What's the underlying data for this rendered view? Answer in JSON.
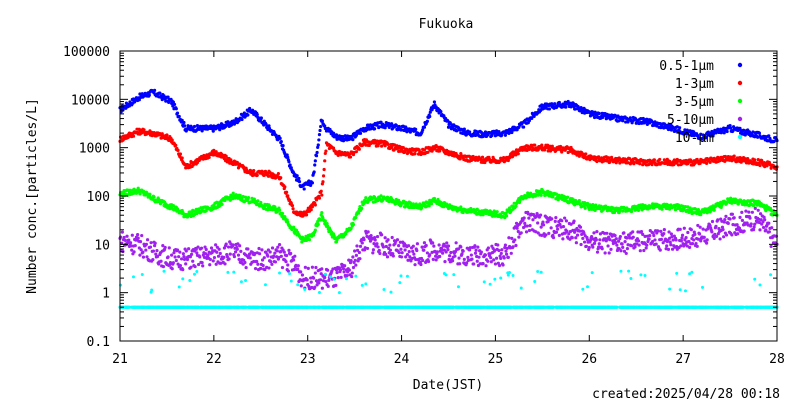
{
  "chart_data": {
    "type": "scatter",
    "title": "Fukuoka",
    "xlabel": "Date(JST)",
    "ylabel": "Number conc.[particles/L]",
    "y_scale": "log",
    "xlim": [
      21,
      28
    ],
    "ylim": [
      0.1,
      100000
    ],
    "x_ticks": [
      "21",
      "22",
      "23",
      "24",
      "25",
      "26",
      "27",
      "28"
    ],
    "y_ticks": [
      "0.1",
      "1",
      "10",
      "100",
      "1000",
      "10000",
      "100000"
    ],
    "legend_position": "top-right",
    "footer": "created:2025/04/28 00:18",
    "series": [
      {
        "name": "0.5-1μm",
        "color": "#0000ff",
        "x": [
          21.0,
          21.2,
          21.35,
          21.55,
          21.7,
          22.0,
          22.2,
          22.4,
          22.55,
          22.7,
          22.85,
          22.95,
          23.05,
          23.15,
          23.2,
          23.3,
          23.45,
          23.6,
          23.8,
          24.0,
          24.2,
          24.35,
          24.5,
          24.7,
          24.9,
          25.1,
          25.3,
          25.5,
          25.8,
          26.0,
          26.3,
          26.6,
          26.9,
          27.2,
          27.5,
          27.8,
          28.0
        ],
        "y": [
          6000,
          11000,
          14000,
          9000,
          2500,
          2500,
          3200,
          6000,
          3000,
          1500,
          300,
          150,
          200,
          4000,
          2500,
          1700,
          1500,
          2500,
          3000,
          2500,
          2000,
          8000,
          3000,
          2000,
          1900,
          2000,
          3000,
          7000,
          8000,
          5000,
          4000,
          3500,
          2500,
          1700,
          2500,
          1800,
          1400
        ]
      },
      {
        "name": "1-3μm",
        "color": "#ff0000",
        "x": [
          21.0,
          21.2,
          21.35,
          21.55,
          21.7,
          22.0,
          22.2,
          22.4,
          22.55,
          22.7,
          22.85,
          22.95,
          23.05,
          23.15,
          23.2,
          23.3,
          23.45,
          23.6,
          23.8,
          24.0,
          24.2,
          24.35,
          24.5,
          24.7,
          24.9,
          25.1,
          25.3,
          25.5,
          25.8,
          26.0,
          26.3,
          26.6,
          26.9,
          27.2,
          27.5,
          27.8,
          28.0
        ],
        "y": [
          1500,
          2200,
          2000,
          1500,
          400,
          800,
          500,
          300,
          300,
          250,
          50,
          40,
          60,
          120,
          1200,
          800,
          700,
          1300,
          1200,
          900,
          800,
          1000,
          800,
          600,
          550,
          550,
          1000,
          1000,
          900,
          600,
          550,
          500,
          500,
          500,
          600,
          500,
          400
        ]
      },
      {
        "name": "3-5μm",
        "color": "#00ff00",
        "x": [
          21.0,
          21.2,
          21.35,
          21.55,
          21.7,
          22.0,
          22.2,
          22.4,
          22.55,
          22.7,
          22.85,
          22.95,
          23.05,
          23.15,
          23.2,
          23.3,
          23.45,
          23.6,
          23.8,
          24.0,
          24.2,
          24.35,
          24.5,
          24.7,
          24.9,
          25.1,
          25.3,
          25.5,
          25.8,
          26.0,
          26.3,
          26.6,
          26.9,
          27.2,
          27.5,
          27.8,
          28.0
        ],
        "y": [
          110,
          130,
          90,
          60,
          40,
          60,
          100,
          80,
          60,
          50,
          20,
          12,
          15,
          40,
          25,
          12,
          20,
          80,
          90,
          70,
          60,
          80,
          60,
          50,
          45,
          40,
          100,
          120,
          80,
          60,
          50,
          60,
          60,
          45,
          80,
          70,
          40
        ]
      },
      {
        "name": "5-10μm",
        "color": "#a020f0",
        "x": [
          21.0,
          21.2,
          21.35,
          21.55,
          21.7,
          22.0,
          22.2,
          22.4,
          22.55,
          22.7,
          22.85,
          22.95,
          23.05,
          23.15,
          23.2,
          23.3,
          23.45,
          23.6,
          23.8,
          24.0,
          24.2,
          24.35,
          24.5,
          24.7,
          24.9,
          25.1,
          25.3,
          25.5,
          25.8,
          26.0,
          26.3,
          26.6,
          26.9,
          27.2,
          27.5,
          27.8,
          28.0
        ],
        "y": [
          12,
          10,
          7,
          5,
          5,
          6,
          7,
          5,
          5,
          6,
          4,
          2,
          2,
          2,
          2,
          2,
          3,
          12,
          10,
          7,
          6,
          8,
          7,
          6,
          6,
          6,
          30,
          25,
          20,
          12,
          10,
          12,
          13,
          15,
          25,
          35,
          10
        ]
      },
      {
        "name": "10-μm",
        "color": "#00ffff",
        "x": [
          21.0,
          21.3,
          21.6,
          21.9,
          22.2,
          22.5,
          22.8,
          23.1,
          23.4,
          23.7,
          24.0,
          24.3,
          24.6,
          24.9,
          25.2,
          25.5,
          25.8,
          26.1,
          26.4,
          26.7,
          27.0,
          27.3,
          27.6,
          27.9,
          28.0
        ],
        "y": [
          0.5,
          0.5,
          0.5,
          0.5,
          0.5,
          0.5,
          0.5,
          0.5,
          0.5,
          0.5,
          0.5,
          0.5,
          0.5,
          0.5,
          0.5,
          0.5,
          0.5,
          0.5,
          0.5,
          0.5,
          0.5,
          0.5,
          0.5,
          0.5,
          0.5
        ]
      }
    ]
  }
}
